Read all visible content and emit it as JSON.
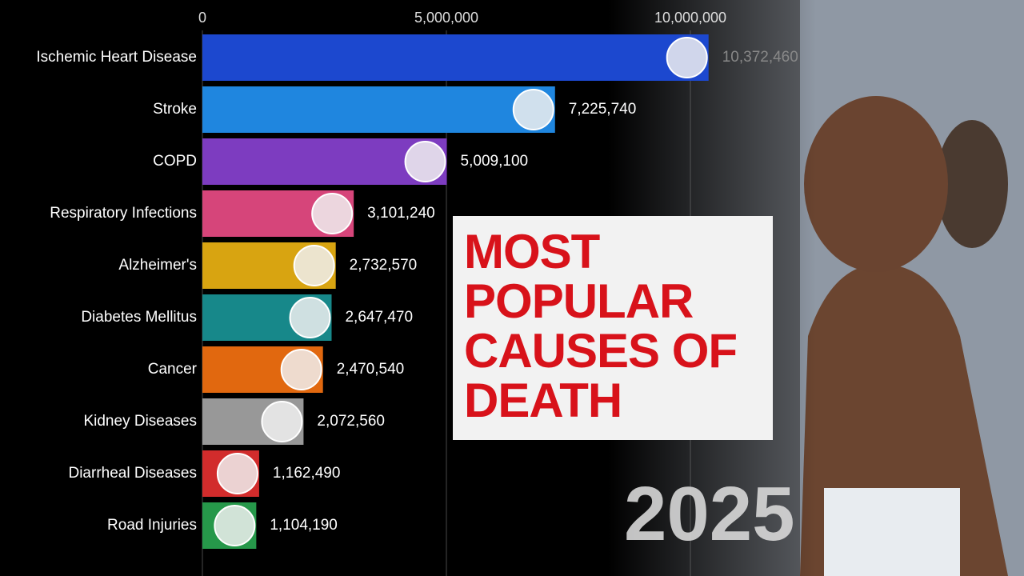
{
  "chart_data": {
    "type": "bar",
    "orientation": "horizontal",
    "title": "MOST POPULAR CAUSES OF DEATH",
    "annotation": "2025",
    "categories": [
      "Ischemic Heart Disease",
      "Stroke",
      "COPD",
      "Respiratory Infections",
      "Alzheimer's",
      "Diabetes Mellitus",
      "Cancer",
      "Kidney Diseases",
      "Diarrheal Diseases",
      "Road Injuries"
    ],
    "values": [
      10372460,
      7225740,
      5009100,
      3101240,
      2732570,
      2647470,
      2470540,
      2072560,
      1162490,
      1104190
    ],
    "value_labels": [
      "10,372,460",
      "7,225,740",
      "5,009,100",
      "3,101,240",
      "2,732,570",
      "2,647,470",
      "2,470,540",
      "2,072,560",
      "1,162,490",
      "1,104,190"
    ],
    "colors": [
      "#1c48cf",
      "#1f86df",
      "#7d3cc0",
      "#d6457a",
      "#d8a411",
      "#17888a",
      "#e1680f",
      "#989898",
      "#d22c2c",
      "#26984a"
    ],
    "xlim": [
      0,
      10500000
    ],
    "xticks": [
      0,
      {
        "value": 5000000,
        "label": "5,000,000"
      },
      {
        "value": 10000000,
        "label": "10,000,000"
      }
    ],
    "grid": true
  }
}
